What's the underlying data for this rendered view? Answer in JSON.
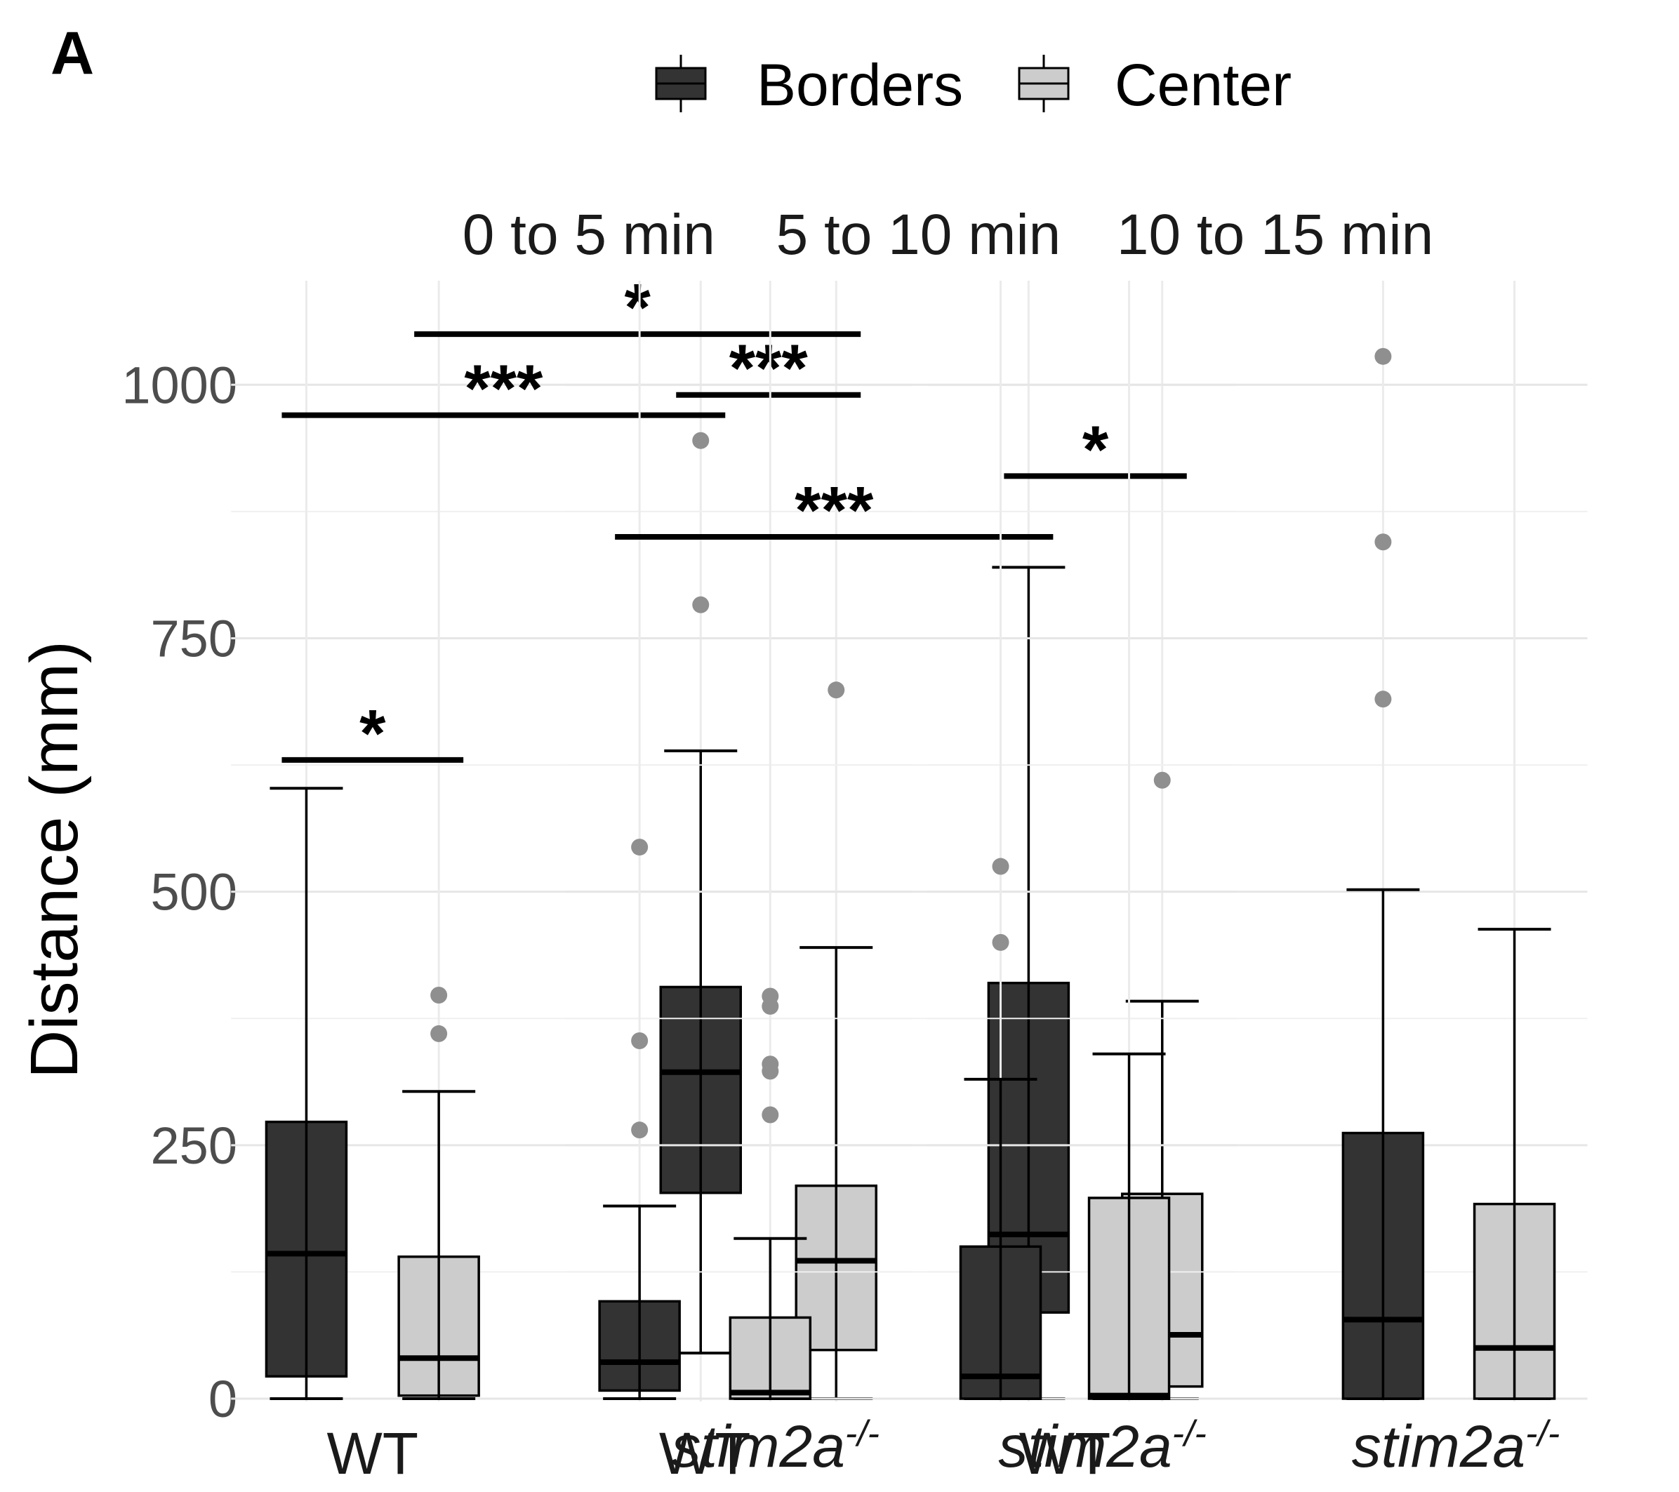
{
  "chart_data": {
    "type": "box",
    "panel_label": "A",
    "ylabel": "Distance (mm)",
    "ylim": [
      0,
      1100
    ],
    "yticks": [
      0,
      250,
      500,
      750,
      1000
    ],
    "legend": {
      "position": "top",
      "entries": [
        {
          "name": "Borders",
          "color": "#333333"
        },
        {
          "name": "Center",
          "color": "#cccccc"
        }
      ]
    },
    "group_labels": [
      "WT",
      "stim2a",
      "-/-"
    ],
    "facets": [
      {
        "title": "0 to 5 min",
        "boxes": [
          {
            "group": "WT",
            "series": "Borders",
            "min": 0,
            "q1": 22,
            "median": 143,
            "q3": 273,
            "max": 602,
            "outliers": []
          },
          {
            "group": "WT",
            "series": "Center",
            "min": 0,
            "q1": 3,
            "median": 40,
            "q3": 140,
            "max": 303,
            "outliers": [
              360,
              398
            ]
          },
          {
            "group": "stim2a-/-",
            "series": "Borders",
            "min": 45,
            "q1": 203,
            "median": 322,
            "q3": 406,
            "max": 639,
            "outliers": [
              783,
              945
            ]
          },
          {
            "group": "stim2a-/-",
            "series": "Center",
            "min": 0,
            "q1": 48,
            "median": 136,
            "q3": 210,
            "max": 445,
            "outliers": [
              699
            ]
          }
        ],
        "significance": [
          {
            "label": "*",
            "from": 0,
            "to": 1,
            "y": 630
          },
          {
            "label": "***",
            "from": 0,
            "to": 2,
            "y": 970
          },
          {
            "label": "*",
            "from": 1,
            "to": 3,
            "y": 1050
          },
          {
            "label": "***",
            "from": 2,
            "to": 3,
            "y": 990
          }
        ]
      },
      {
        "title": "5 to 10 min",
        "boxes": [
          {
            "group": "WT",
            "series": "Borders",
            "min": 0,
            "q1": 8,
            "median": 36,
            "q3": 96,
            "max": 190,
            "outliers": [
              265,
              353,
              544
            ]
          },
          {
            "group": "WT",
            "series": "Center",
            "min": 0,
            "q1": 0,
            "median": 6,
            "q3": 80,
            "max": 158,
            "outliers": [
              280,
              323,
              330,
              387,
              397
            ]
          },
          {
            "group": "stim2a-/-",
            "series": "Borders",
            "min": 0,
            "q1": 85,
            "median": 162,
            "q3": 410,
            "max": 820,
            "outliers": []
          },
          {
            "group": "stim2a-/-",
            "series": "Center",
            "min": 0,
            "q1": 12,
            "median": 63,
            "q3": 202,
            "max": 392,
            "outliers": [
              610
            ]
          }
        ],
        "significance": [
          {
            "label": "***",
            "from": 0,
            "to": 2,
            "y": 850
          },
          {
            "label": "*",
            "from": 2,
            "to": 3,
            "y": 910
          }
        ]
      },
      {
        "title": "10 to 15 min",
        "boxes": [
          {
            "group": "WT",
            "series": "Borders",
            "min": 0,
            "q1": 0,
            "median": 22,
            "q3": 150,
            "max": 315,
            "outliers": [
              450,
              525
            ]
          },
          {
            "group": "WT",
            "series": "Center",
            "min": 0,
            "q1": 0,
            "median": 3,
            "q3": 198,
            "max": 340,
            "outliers": []
          },
          {
            "group": "stim2a-/-",
            "series": "Borders",
            "min": 0,
            "q1": 0,
            "median": 78,
            "q3": 262,
            "max": 502,
            "outliers": [
              690,
              845,
              1028
            ]
          },
          {
            "group": "stim2a-/-",
            "series": "Center",
            "min": 0,
            "q1": 0,
            "median": 50,
            "q3": 192,
            "max": 463,
            "outliers": []
          }
        ],
        "significance": []
      }
    ]
  }
}
